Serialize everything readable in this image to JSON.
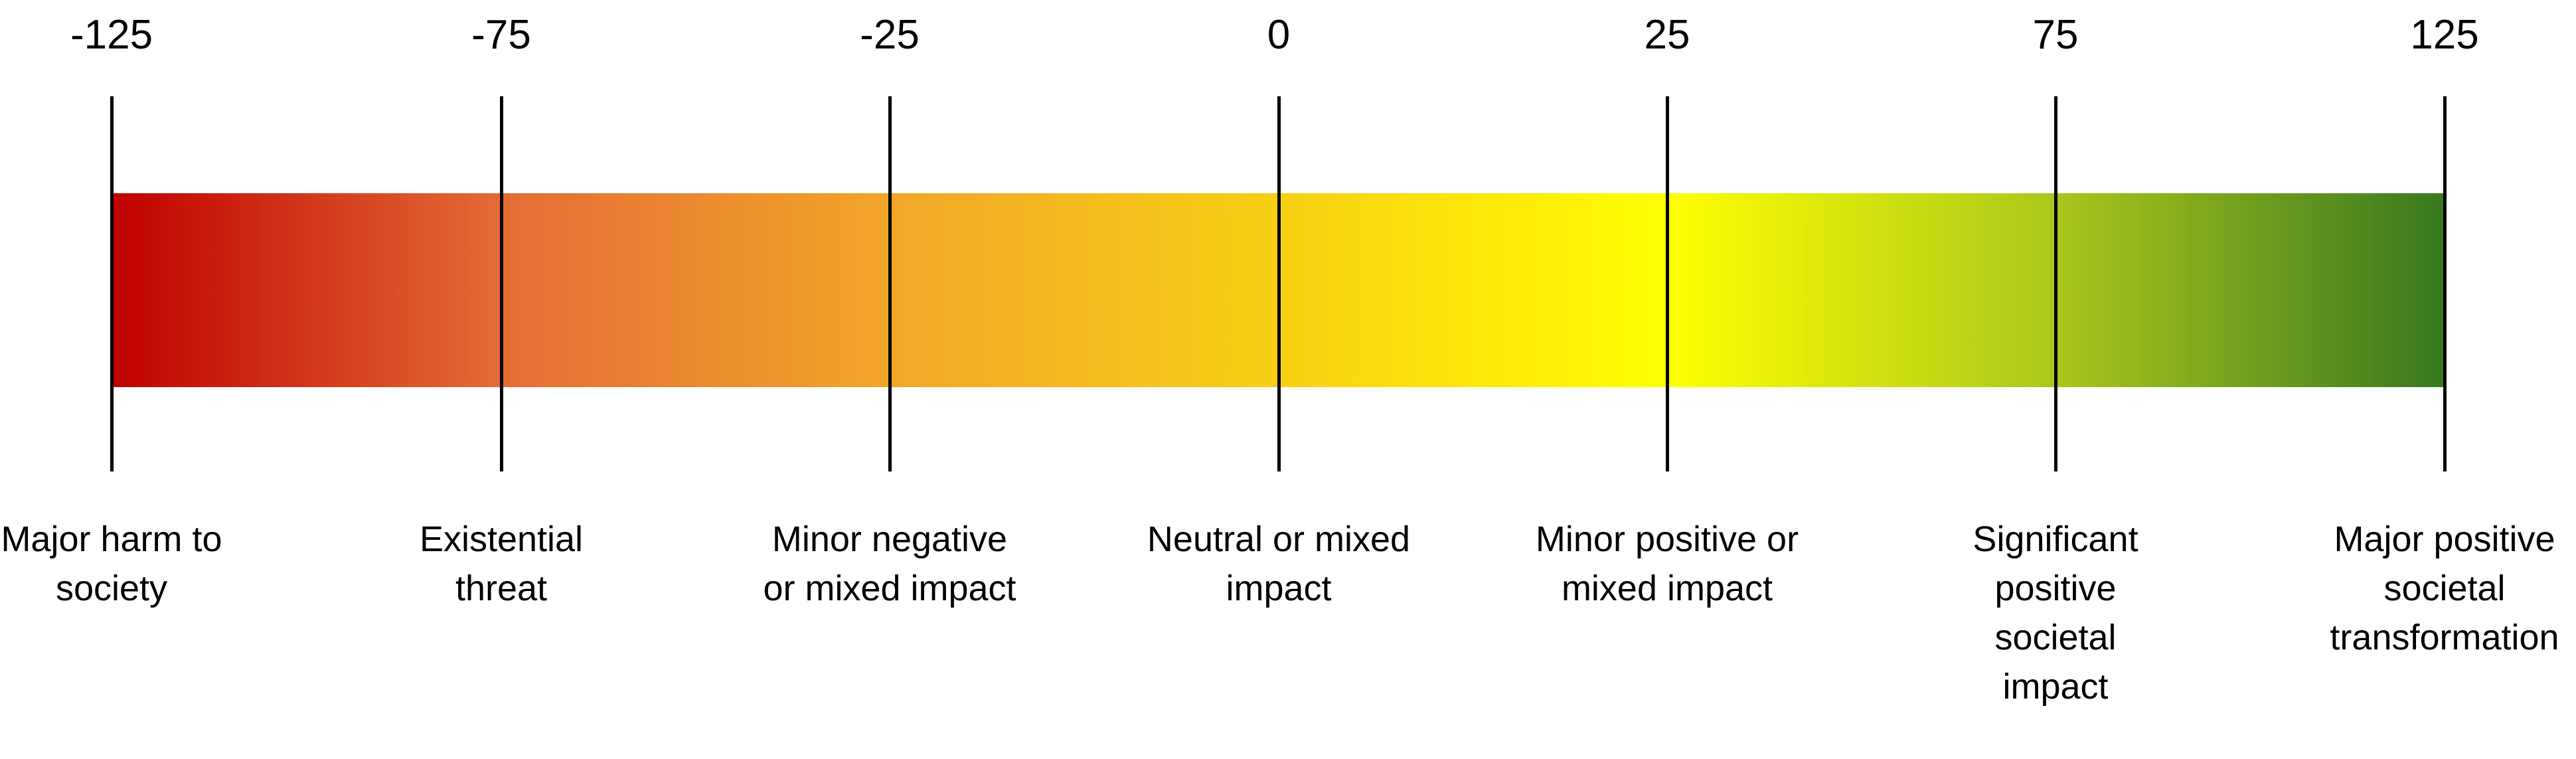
{
  "colors": {
    "scale_gradient": [
      "#c00000",
      "#e46c35",
      "#f2a629",
      "#f7cf13",
      "#ffff00",
      "#aac61b",
      "#38791f"
    ],
    "tick_line": "#000000",
    "text": "#000000"
  },
  "scale": {
    "min": -125,
    "max": 125,
    "ticks": [
      {
        "value": "-125",
        "label": "Major harm to society"
      },
      {
        "value": "-75",
        "label": "Existential threat"
      },
      {
        "value": "-25",
        "label": "Minor negative or mixed impact"
      },
      {
        "value": "0",
        "label": "Neutral or mixed impact"
      },
      {
        "value": "25",
        "label": "Minor positive or mixed impact"
      },
      {
        "value": "75",
        "label": "Significant positive societal impact"
      },
      {
        "value": "125",
        "label": "Major positive societal transformation"
      }
    ]
  }
}
